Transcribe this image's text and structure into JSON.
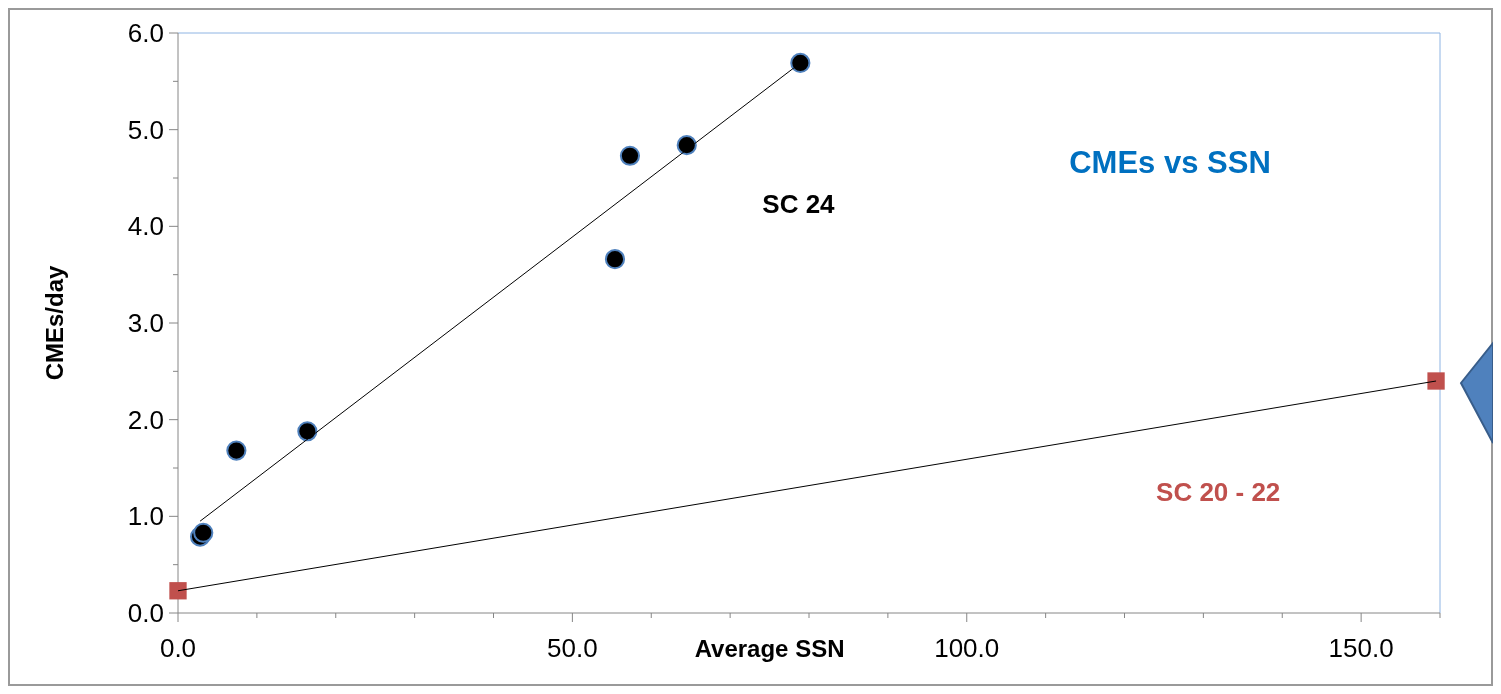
{
  "chart_data": {
    "type": "scatter",
    "title": "CMEs vs SSN",
    "xlabel": "Average SSN",
    "ylabel": "CMEs/day",
    "xlim": [
      0,
      160
    ],
    "ylim": [
      0,
      6
    ],
    "xticks": [
      {
        "value": 0,
        "label": "0.0"
      },
      {
        "value": 10,
        "label": null
      },
      {
        "value": 20,
        "label": null
      },
      {
        "value": 30,
        "label": null
      },
      {
        "value": 40,
        "label": null
      },
      {
        "value": 50,
        "label": "50.0"
      },
      {
        "value": 60,
        "label": null
      },
      {
        "value": 70,
        "label": null
      },
      {
        "value": 80,
        "label": null
      },
      {
        "value": 90,
        "label": null
      },
      {
        "value": 100,
        "label": "100.0"
      },
      {
        "value": 110,
        "label": null
      },
      {
        "value": 120,
        "label": null
      },
      {
        "value": 130,
        "label": null
      },
      {
        "value": 140,
        "label": null
      },
      {
        "value": 150,
        "label": "150.0"
      },
      {
        "value": 160,
        "label": null
      }
    ],
    "yticks": [
      {
        "value": 0,
        "label": "0.0"
      },
      {
        "value": 0.5,
        "label": null
      },
      {
        "value": 1,
        "label": "1.0"
      },
      {
        "value": 1.5,
        "label": null
      },
      {
        "value": 2,
        "label": "2.0"
      },
      {
        "value": 2.5,
        "label": null
      },
      {
        "value": 3,
        "label": "3.0"
      },
      {
        "value": 3.5,
        "label": null
      },
      {
        "value": 4,
        "label": "4.0"
      },
      {
        "value": 4.5,
        "label": null
      },
      {
        "value": 5,
        "label": "5.0"
      },
      {
        "value": 5.5,
        "label": null
      },
      {
        "value": 6,
        "label": "6.0"
      }
    ],
    "grid": false,
    "legend": false,
    "series": [
      {
        "name": "SC 24",
        "color": "#000000",
        "marker": "circle",
        "x": [
          2.8,
          3.2,
          7.4,
          16.4,
          55.4,
          57.3,
          64.5,
          78.9
        ],
        "values": [
          0.79,
          0.83,
          1.68,
          1.88,
          3.66,
          4.73,
          4.84,
          5.69
        ]
      },
      {
        "type": "line",
        "color": "#000000",
        "marker": "none",
        "x": [
          2.8,
          78.9
        ],
        "values": [
          0.95,
          5.69
        ]
      },
      {
        "name": "SC 20 - 22",
        "color": "#c0504d",
        "marker": "square",
        "x": [
          0,
          159.5
        ],
        "values": [
          0.23,
          2.4
        ]
      },
      {
        "type": "line",
        "color": "#000000",
        "marker": "none",
        "x": [
          0,
          159.5
        ],
        "values": [
          0.23,
          2.4
        ]
      }
    ]
  }
}
